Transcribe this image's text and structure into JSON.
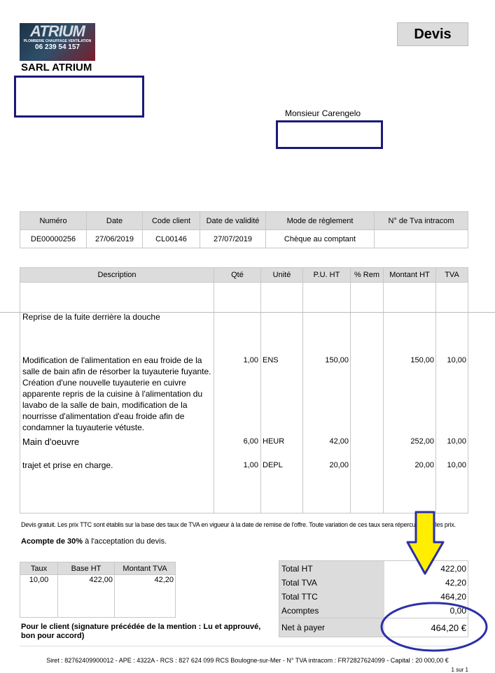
{
  "company": {
    "logo_text": "ATRIUM",
    "logo_tagline": "PLOMBERIE CHAUFFAGE VENTILATION",
    "logo_phone": "06 239 54 157",
    "name": "SARL ATRIUM"
  },
  "doc_type": "Devis",
  "client_name": "Monsieur Carengelo",
  "info_table": {
    "headers": [
      "Numéro",
      "Date",
      "Code client",
      "Date de validité",
      "Mode de règlement",
      "N° de Tva intracom"
    ],
    "values": [
      "DE00000256",
      "27/06/2019",
      "CL00146",
      "27/07/2019",
      "Chèque au comptant",
      ""
    ]
  },
  "items_table": {
    "headers": [
      "Description",
      "Qté",
      "Unité",
      "P.U. HT",
      "% Rem",
      "Montant HT",
      "TVA"
    ],
    "items": [
      {
        "description": "Reprise de la fuite derrière la douche",
        "qty": "",
        "unit": "",
        "pu": "",
        "rem": "",
        "amount": "",
        "tva": ""
      },
      {
        "description": " Modification de l'alimentation en eau froide de la salle de bain afin de résorber la tuyauterie fuyante. Création d'une nouvelle tuyauterie en cuivre apparente repris de la cuisine à l'alimentation du lavabo de la salle de bain, modification de la nourrisse d'alimentation d'eau froide afin de condamner la tuyauterie vétuste.",
        "qty": "1,00",
        "unit": "ENS",
        "pu": "150,00",
        "rem": "",
        "amount": "150,00",
        "tva": "10,00"
      },
      {
        "description": "Main d'oeuvre",
        "qty": "6,00",
        "unit": "HEUR",
        "pu": "42,00",
        "rem": "",
        "amount": "252,00",
        "tva": "10,00"
      },
      {
        "description": "trajet et prise en charge.",
        "qty": "1,00",
        "unit": "DEPL",
        "pu": "20,00",
        "rem": "",
        "amount": "20,00",
        "tva": "10,00"
      }
    ]
  },
  "notes": "Devis gratuit. Les prix TTC sont établis sur la base des taux de TVA en vigueur à la date de remise de l'offre. Toute variation de ces taux sera répercutée sur les prix.",
  "acompte": {
    "bold": "Acompte de 30%",
    "rest": " à l'acceptation du devis."
  },
  "tva_table": {
    "headers": [
      "Taux",
      "Base HT",
      "Montant TVA"
    ],
    "values": [
      "10,00",
      "422,00",
      "42,20"
    ]
  },
  "totals": [
    {
      "label": "Total HT",
      "value": "422,00"
    },
    {
      "label": "Total TVA",
      "value": "42,20"
    },
    {
      "label": "Total TTC",
      "value": "464,20"
    },
    {
      "label": "Acomptes",
      "value": "0,00"
    },
    {
      "label": "Net à payer",
      "value": "464,20 €"
    }
  ],
  "signature": "Pour le client (signature précédée de la mention : Lu et approuvé, bon pour accord)",
  "footer": "Siret : 82762409900012 - APE : 4322A - RCS : 827 624 099 RCS Boulogne-sur-Mer - N° TVA intracom : FR72827624099 - Capital : 20 000,00 €",
  "page": "1 sur 1",
  "annotation_colors": {
    "arrow": "#ffee00",
    "outline": "#2b2fa8",
    "redaction": "#1a1a7a"
  }
}
